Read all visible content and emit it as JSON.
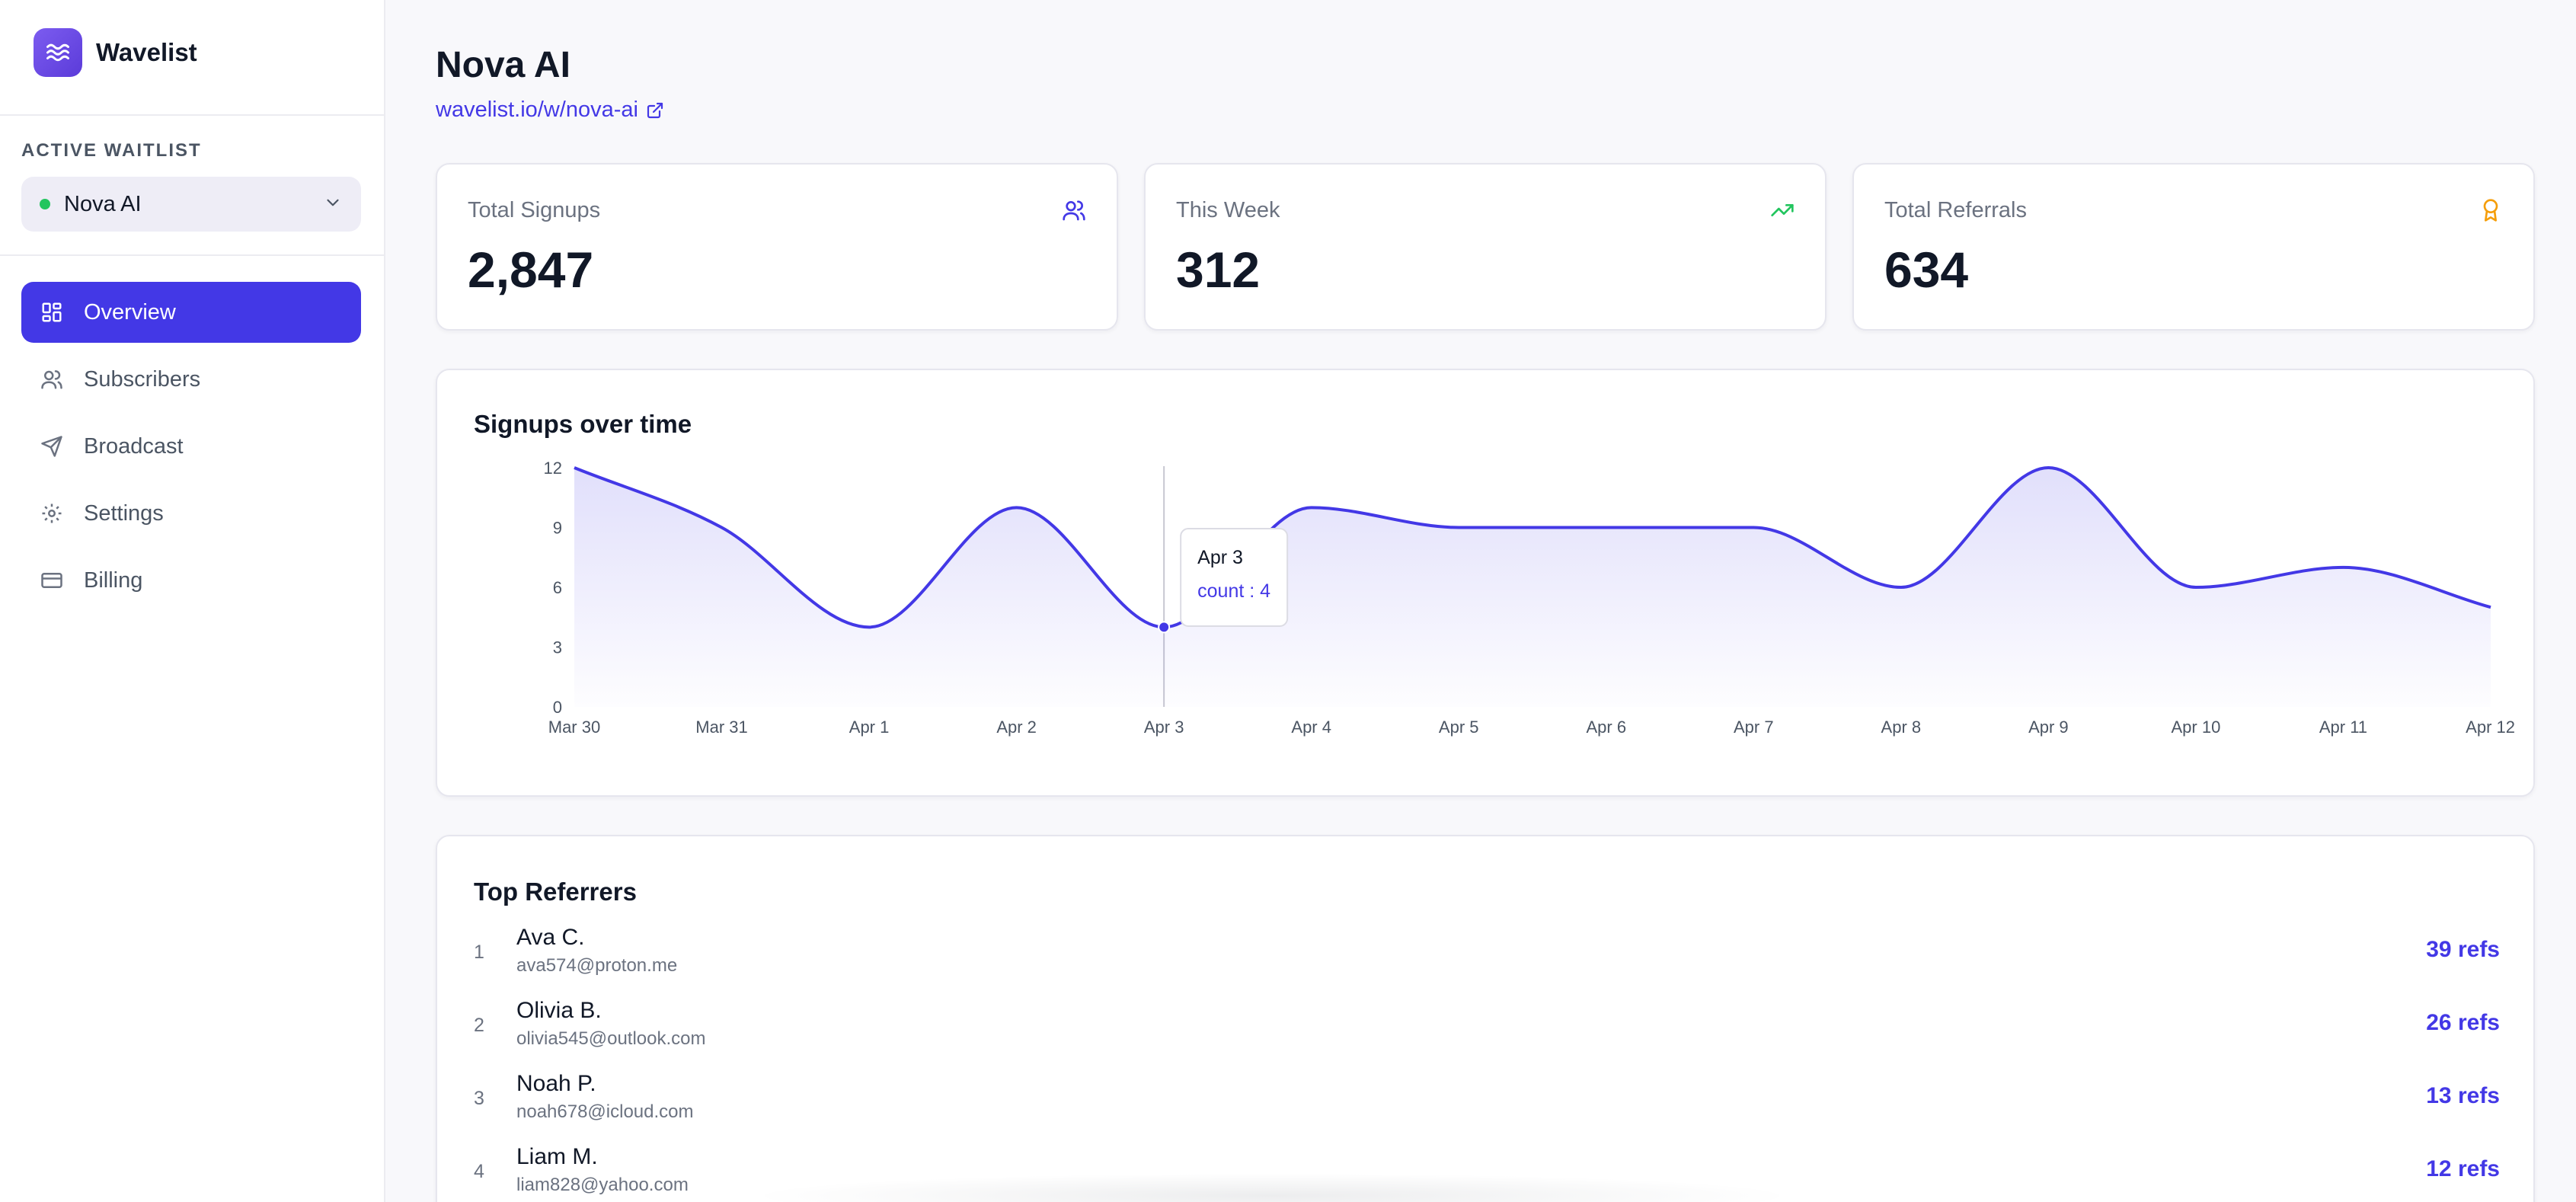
{
  "brand": {
    "name": "Wavelist"
  },
  "sidebar": {
    "section_label": "ACTIVE WAITLIST",
    "waitlist": {
      "name": "Nova AI",
      "status_color": "#22c55e"
    },
    "nav": [
      {
        "label": "Overview",
        "icon": "grid-icon",
        "active": true
      },
      {
        "label": "Subscribers",
        "icon": "users-icon",
        "active": false
      },
      {
        "label": "Broadcast",
        "icon": "send-icon",
        "active": false
      },
      {
        "label": "Settings",
        "icon": "gear-icon",
        "active": false
      },
      {
        "label": "Billing",
        "icon": "credit-card-icon",
        "active": false
      }
    ]
  },
  "header": {
    "title": "Nova AI",
    "link": "wavelist.io/w/nova-ai"
  },
  "stats": [
    {
      "label": "Total Signups",
      "value": "2,847",
      "icon": "users-icon",
      "color": "#4338e6"
    },
    {
      "label": "This Week",
      "value": "312",
      "icon": "trending-up-icon",
      "color": "#22c55e"
    },
    {
      "label": "Total Referrals",
      "value": "634",
      "icon": "award-icon",
      "color": "#f59e0b"
    }
  ],
  "chart": {
    "title": "Signups over time",
    "tooltip": {
      "date": "Apr 3",
      "text": "count : 4"
    }
  },
  "chart_data": {
    "type": "area",
    "title": "Signups over time",
    "categories": [
      "Mar 30",
      "Mar 31",
      "Apr 1",
      "Apr 2",
      "Apr 3",
      "Apr 4",
      "Apr 5",
      "Apr 6",
      "Apr 7",
      "Apr 8",
      "Apr 9",
      "Apr 10",
      "Apr 11",
      "Apr 12"
    ],
    "series": [
      {
        "values": [
          12,
          9,
          4,
          10,
          4,
          10,
          9,
          9,
          9,
          6,
          12,
          6,
          7,
          5
        ]
      }
    ],
    "yticks": [
      0,
      3,
      6,
      9,
      12
    ],
    "ylim": [
      0,
      12
    ],
    "grid": false,
    "legend": "none",
    "color": "#4338e6",
    "highlight_index": 4
  },
  "referrers": {
    "title": "Top Referrers",
    "items": [
      {
        "rank": "1",
        "name": "Ava C.",
        "email": "ava574@proton.me",
        "refs": "39 refs"
      },
      {
        "rank": "2",
        "name": "Olivia B.",
        "email": "olivia545@outlook.com",
        "refs": "26 refs"
      },
      {
        "rank": "3",
        "name": "Noah P.",
        "email": "noah678@icloud.com",
        "refs": "13 refs"
      },
      {
        "rank": "4",
        "name": "Liam M.",
        "email": "liam828@yahoo.com",
        "refs": "12 refs"
      }
    ]
  }
}
